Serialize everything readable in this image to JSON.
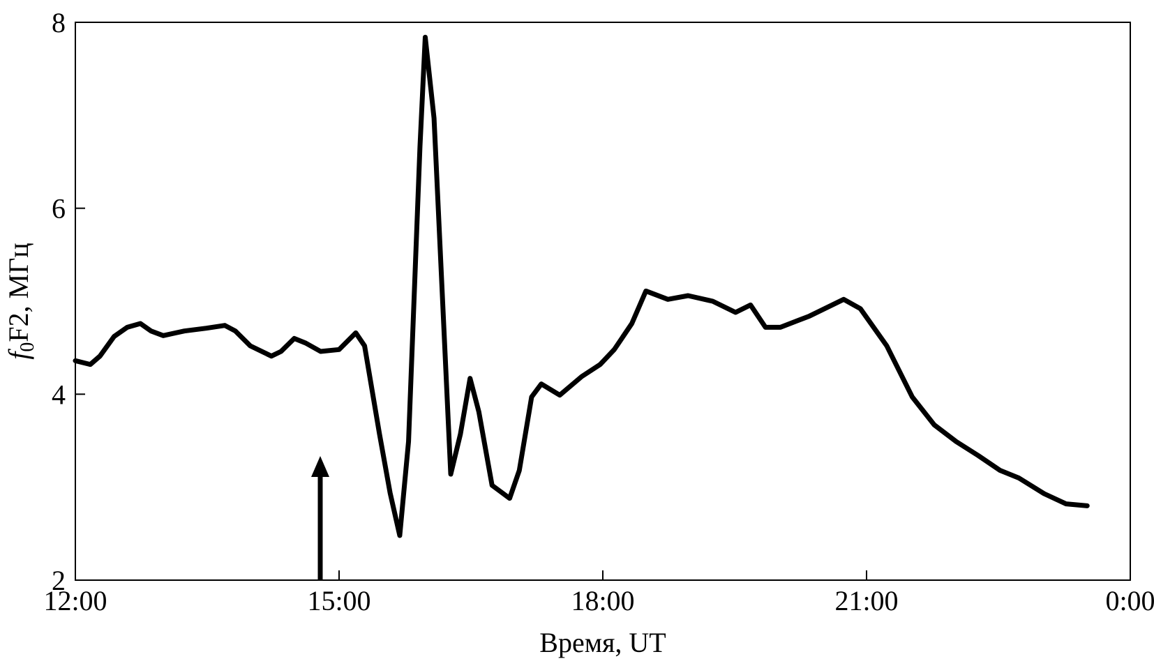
{
  "chart_data": {
    "type": "line",
    "xlabel": "Время, UT",
    "ylabel": [
      "f",
      "0",
      "F2, МГц"
    ],
    "xlim": [
      12,
      24
    ],
    "xticks": [
      {
        "value": 12,
        "label": "12:00"
      },
      {
        "value": 15,
        "label": "15:00"
      },
      {
        "value": 18,
        "label": "18:00"
      },
      {
        "value": 21,
        "label": "21:00"
      },
      {
        "value": 24,
        "label": "0:00"
      }
    ],
    "ylim": [
      2,
      8
    ],
    "yticks": [
      2,
      4,
      6,
      8
    ],
    "grid": false,
    "series": [
      {
        "color": "#000000",
        "x": [
          12.0,
          12.17,
          12.28,
          12.44,
          12.59,
          12.74,
          12.86,
          13.0,
          13.24,
          13.49,
          13.7,
          13.82,
          13.99,
          14.23,
          14.34,
          14.49,
          14.62,
          14.79,
          15.0,
          15.19,
          15.29,
          15.46,
          15.58,
          15.69,
          15.79,
          15.92,
          15.98,
          16.08,
          16.27,
          16.38,
          16.49,
          16.59,
          16.74,
          16.94,
          17.05,
          17.19,
          17.3,
          17.51,
          17.76,
          17.97,
          18.13,
          18.33,
          18.49,
          18.74,
          18.97,
          19.25,
          19.51,
          19.68,
          19.85,
          20.02,
          20.35,
          20.74,
          20.93,
          21.23,
          21.52,
          21.77,
          22.02,
          22.27,
          22.52,
          22.73,
          23.02,
          23.27,
          23.51
        ],
        "values": [
          4.36,
          4.32,
          4.41,
          4.62,
          4.72,
          4.76,
          4.68,
          4.63,
          4.68,
          4.71,
          4.74,
          4.68,
          4.52,
          4.41,
          4.46,
          4.6,
          4.55,
          4.46,
          4.48,
          4.66,
          4.52,
          3.57,
          2.94,
          2.48,
          3.49,
          6.66,
          7.84,
          6.97,
          3.14,
          3.57,
          4.17,
          3.81,
          3.02,
          2.88,
          3.18,
          3.97,
          4.11,
          3.99,
          4.19,
          4.32,
          4.48,
          4.76,
          5.11,
          5.02,
          5.06,
          5.0,
          4.88,
          4.96,
          4.72,
          4.72,
          4.84,
          5.02,
          4.92,
          4.52,
          3.97,
          3.67,
          3.49,
          3.34,
          3.18,
          3.1,
          2.93,
          2.82,
          2.8
        ]
      }
    ]
  }
}
